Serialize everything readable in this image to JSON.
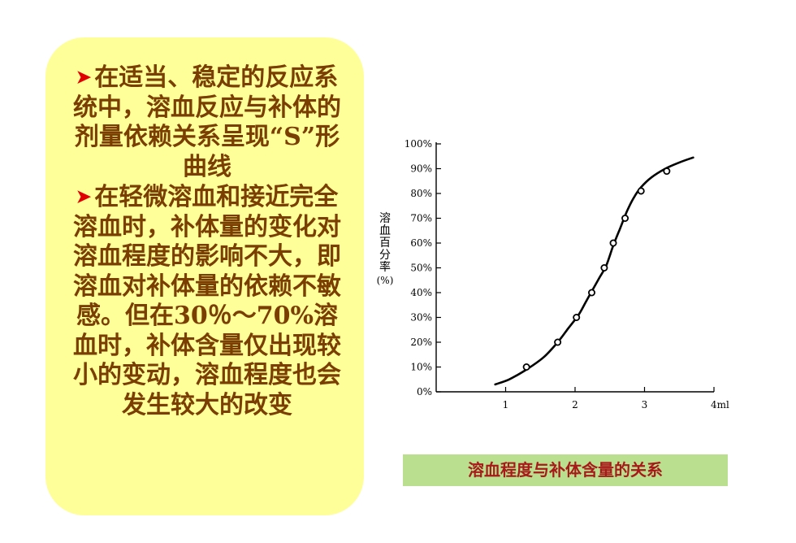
{
  "text_panel": {
    "bullet_symbol": "➤",
    "bullet1": "在适当、稳定的反应系统中，溶血反应与补体的剂量依赖关系呈现“S”形曲线",
    "bullet2": "在轻微溶血和接近完全溶血时，补体量的变化对溶血程度的影响不大，即溶血对补体量的依赖不敏感。但在30％～70%溶血时，补体含量仅出现较小的变动，溶血程度也会发生较大的改变"
  },
  "caption": "溶血程度与补体含量的关系",
  "colors": {
    "panel_background": "#ffff99",
    "panel_text": "#7a3f00",
    "bullet": "#e00000",
    "caption_background": "#b9df8f",
    "caption_text": "#a81a1a"
  },
  "chart_data": {
    "type": "line",
    "title": "",
    "xlabel": "",
    "ylabel": "溶血百分率",
    "ylabel_unit": "(%)",
    "x_ticks": [
      {
        "value": 1,
        "label": "1"
      },
      {
        "value": 2,
        "label": "2"
      },
      {
        "value": 3,
        "label": "3"
      },
      {
        "value": 4,
        "label": "4ml"
      }
    ],
    "y_ticks": [
      {
        "value": 0,
        "label": "0%"
      },
      {
        "value": 10,
        "label": "10%"
      },
      {
        "value": 20,
        "label": "20%"
      },
      {
        "value": 30,
        "label": "30%"
      },
      {
        "value": 40,
        "label": "40%"
      },
      {
        "value": 50,
        "label": "50%"
      },
      {
        "value": 60,
        "label": "60%"
      },
      {
        "value": 70,
        "label": "70%"
      },
      {
        "value": 80,
        "label": "80%"
      },
      {
        "value": 90,
        "label": "90%"
      },
      {
        "value": 100,
        "label": "100%"
      }
    ],
    "xlim": [
      0,
      4
    ],
    "ylim": [
      0,
      100
    ],
    "grid": false,
    "series": [
      {
        "curve": [
          [
            0.85,
            3
          ],
          [
            1.05,
            5
          ],
          [
            1.3,
            9
          ],
          [
            1.55,
            14
          ],
          [
            1.75,
            20
          ],
          [
            1.9,
            25.5
          ],
          [
            2.05,
            31
          ],
          [
            2.15,
            36
          ],
          [
            2.25,
            41
          ],
          [
            2.35,
            46
          ],
          [
            2.45,
            51
          ],
          [
            2.55,
            59
          ],
          [
            2.65,
            66
          ],
          [
            2.75,
            73
          ],
          [
            2.85,
            78.5
          ],
          [
            2.95,
            82.5
          ],
          [
            3.1,
            86.5
          ],
          [
            3.3,
            90
          ],
          [
            3.5,
            92.5
          ],
          [
            3.7,
            94.5
          ]
        ],
        "points": [
          {
            "x": 1.3,
            "y": 10
          },
          {
            "x": 1.75,
            "y": 20
          },
          {
            "x": 2.02,
            "y": 30
          },
          {
            "x": 2.24,
            "y": 40
          },
          {
            "x": 2.42,
            "y": 50
          },
          {
            "x": 2.55,
            "y": 60
          },
          {
            "x": 2.72,
            "y": 70
          },
          {
            "x": 2.95,
            "y": 81
          },
          {
            "x": 3.32,
            "y": 89
          }
        ]
      }
    ]
  }
}
